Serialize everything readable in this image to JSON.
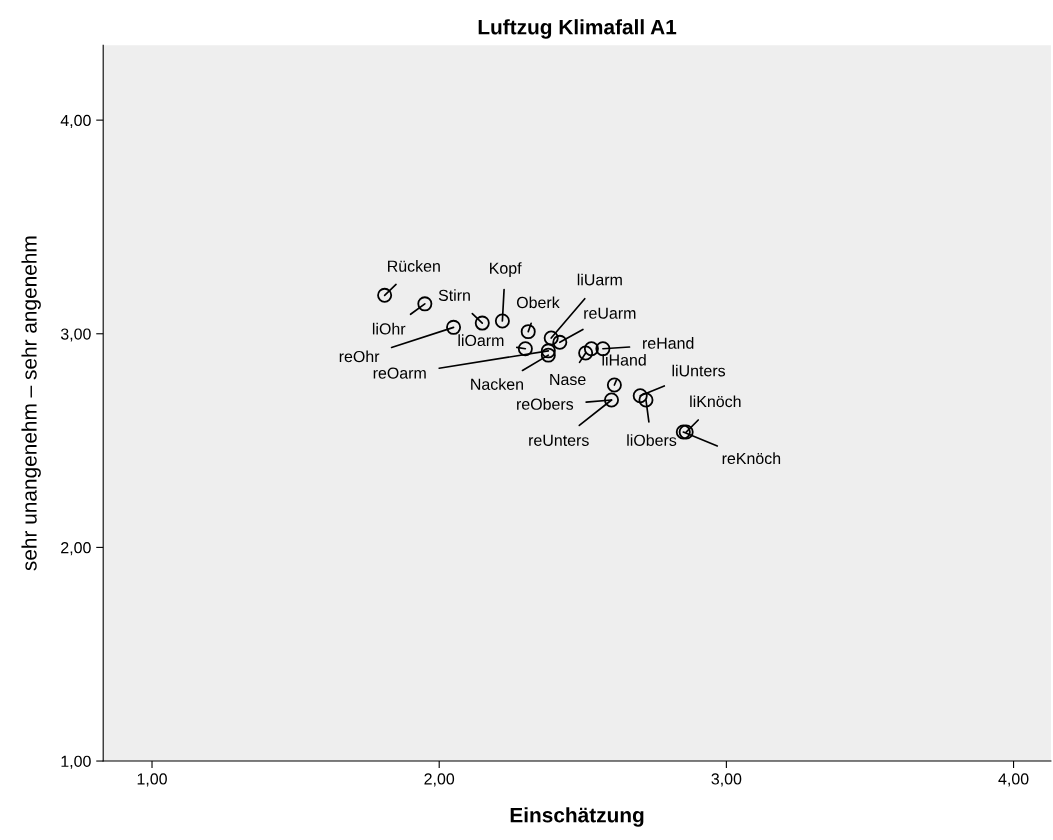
{
  "chart_data": {
    "type": "scatter",
    "title": "Luftzug Klimafall A1",
    "xlabel": "Einschätzung",
    "ylabel": "sehr unangenehm – sehr angenehm",
    "xlim": [
      0.83,
      4.13
    ],
    "ylim": [
      1.0,
      4.35
    ],
    "xticks": [
      {
        "value": 1,
        "label": "1,00"
      },
      {
        "value": 2,
        "label": "2,00"
      },
      {
        "value": 3,
        "label": "3,00"
      },
      {
        "value": 4,
        "label": "4,00"
      }
    ],
    "yticks": [
      {
        "value": 1,
        "label": "1,00"
      },
      {
        "value": 2,
        "label": "2,00"
      },
      {
        "value": 3,
        "label": "3,00"
      },
      {
        "value": 4,
        "label": "4,00"
      }
    ],
    "grid": false,
    "marker": "circle",
    "series": [
      {
        "color": "#000000",
        "x": [
          1.81,
          1.95,
          2.05,
          2.15,
          2.22,
          2.31,
          2.39,
          2.42,
          2.3,
          2.38,
          2.38,
          2.51,
          2.53,
          2.57,
          2.61,
          2.6,
          2.7,
          2.72,
          2.86,
          2.85
        ],
        "values": [
          3.18,
          3.14,
          3.03,
          3.05,
          3.06,
          3.01,
          2.98,
          2.96,
          2.93,
          2.92,
          2.9,
          2.91,
          2.93,
          2.93,
          2.76,
          2.69,
          2.71,
          2.69,
          2.54,
          2.54
        ]
      }
    ],
    "annotations": [
      {
        "text": "Rücken",
        "x": 1.81,
        "y": 3.18
      },
      {
        "text": "liOhr",
        "x": 1.95,
        "y": 3.14
      },
      {
        "text": "reOhr",
        "x": 2.05,
        "y": 3.03
      },
      {
        "text": "Stirn",
        "x": 2.15,
        "y": 3.05
      },
      {
        "text": "Kopf",
        "x": 2.22,
        "y": 3.06
      },
      {
        "text": "Oberk",
        "x": 2.31,
        "y": 3.01
      },
      {
        "text": "liUarm",
        "x": 2.39,
        "y": 2.98
      },
      {
        "text": "reUarm",
        "x": 2.42,
        "y": 2.96
      },
      {
        "text": "liOarm",
        "x": 2.3,
        "y": 2.93
      },
      {
        "text": "reOarm",
        "x": 2.38,
        "y": 2.92
      },
      {
        "text": "Nacken",
        "x": 2.38,
        "y": 2.9
      },
      {
        "text": "Nase",
        "x": 2.51,
        "y": 2.91
      },
      {
        "text": "reHand",
        "x": 2.57,
        "y": 2.93
      },
      {
        "text": "liHand",
        "x": 2.61,
        "y": 2.76
      },
      {
        "text": "reObers",
        "x": 2.6,
        "y": 2.69
      },
      {
        "text": "reUnters",
        "x": 2.6,
        "y": 2.69
      },
      {
        "text": "liUnters",
        "x": 2.7,
        "y": 2.71
      },
      {
        "text": "liObers",
        "x": 2.72,
        "y": 2.69
      },
      {
        "text": "liKnöch",
        "x": 2.86,
        "y": 2.54
      },
      {
        "text": "reKnöch",
        "x": 2.85,
        "y": 2.54
      }
    ]
  }
}
